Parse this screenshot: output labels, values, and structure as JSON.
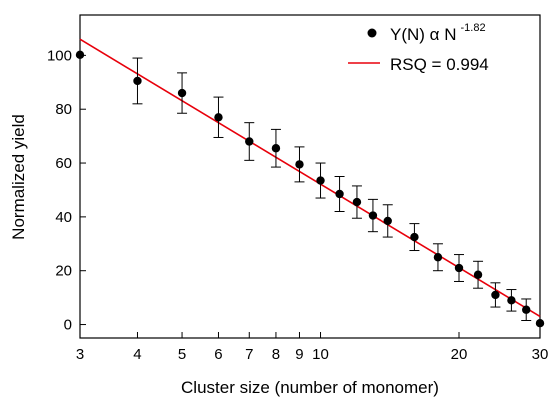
{
  "chart_data": {
    "type": "scatter",
    "xlabel": "Cluster size (number of monomer)",
    "ylabel": "Normalized yield",
    "x_scale": "log",
    "xlim": [
      3,
      30
    ],
    "ylim": [
      -5,
      115
    ],
    "x_ticks": [
      3,
      4,
      5,
      6,
      7,
      8,
      9,
      10,
      20,
      30
    ],
    "y_ticks": [
      0,
      20,
      40,
      60,
      80,
      100
    ],
    "grid": false,
    "legend_position": "top-right",
    "series": [
      {
        "name": "Y(N) α N",
        "name_exponent": "-1.82",
        "kind": "points_with_error_bars",
        "color": "#000000",
        "points": [
          {
            "x": 3,
            "y": 100.2,
            "err": 0
          },
          {
            "x": 4,
            "y": 90.5,
            "err": 8.5
          },
          {
            "x": 5,
            "y": 86.0,
            "err": 7.5
          },
          {
            "x": 6,
            "y": 77.0,
            "err": 7.5
          },
          {
            "x": 7,
            "y": 68.0,
            "err": 7.0
          },
          {
            "x": 8,
            "y": 65.5,
            "err": 7.0
          },
          {
            "x": 9,
            "y": 59.5,
            "err": 6.5
          },
          {
            "x": 10,
            "y": 53.5,
            "err": 6.5
          },
          {
            "x": 11,
            "y": 48.5,
            "err": 6.5
          },
          {
            "x": 12,
            "y": 45.5,
            "err": 6.0
          },
          {
            "x": 13,
            "y": 40.5,
            "err": 6.0
          },
          {
            "x": 14,
            "y": 38.5,
            "err": 6.0
          },
          {
            "x": 16,
            "y": 32.5,
            "err": 5.0
          },
          {
            "x": 18,
            "y": 25.0,
            "err": 5.0
          },
          {
            "x": 20,
            "y": 21.0,
            "err": 5.0
          },
          {
            "x": 22,
            "y": 18.5,
            "err": 5.0
          },
          {
            "x": 24,
            "y": 11.0,
            "err": 4.5
          },
          {
            "x": 26,
            "y": 9.0,
            "err": 4.0
          },
          {
            "x": 28,
            "y": 5.5,
            "err": 4.0
          },
          {
            "x": 30,
            "y": 0.5,
            "err": 0
          }
        ]
      },
      {
        "name": "RSQ = 0.994",
        "kind": "fit_line",
        "color": "#e8000b",
        "x": [
          3,
          30
        ],
        "y": [
          106,
          3
        ]
      }
    ]
  }
}
